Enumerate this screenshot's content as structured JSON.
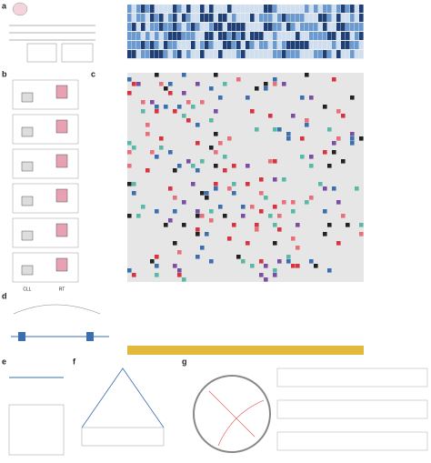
{
  "panels": {
    "a": "a",
    "b": "b",
    "c": "c",
    "d": "d",
    "e": "e",
    "f": "f",
    "g": "g"
  },
  "panel_b": {
    "groups": [
      "CLL",
      "RT"
    ]
  }
}
